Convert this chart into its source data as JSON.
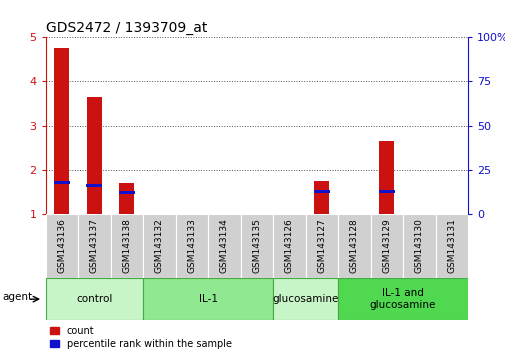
{
  "title": "GDS2472 / 1393709_at",
  "samples": [
    "GSM143136",
    "GSM143137",
    "GSM143138",
    "GSM143132",
    "GSM143133",
    "GSM143134",
    "GSM143135",
    "GSM143126",
    "GSM143127",
    "GSM143128",
    "GSM143129",
    "GSM143130",
    "GSM143131"
  ],
  "count_values": [
    4.75,
    3.65,
    1.7,
    1.0,
    1.0,
    1.0,
    1.0,
    1.0,
    1.75,
    1.0,
    2.65,
    1.0,
    1.0
  ],
  "percentile_values": [
    18,
    16,
    12,
    0,
    0,
    0,
    0,
    0,
    13,
    0,
    13,
    0,
    0
  ],
  "groups": [
    {
      "label": "control",
      "start": 0,
      "end": 3,
      "color": "#c8f5c8"
    },
    {
      "label": "IL-1",
      "start": 3,
      "end": 7,
      "color": "#90e890"
    },
    {
      "label": "glucosamine",
      "start": 7,
      "end": 9,
      "color": "#c8f5c8"
    },
    {
      "label": "IL-1 and\nglucosamine",
      "start": 9,
      "end": 13,
      "color": "#50d850"
    }
  ],
  "bar_color_red": "#cc1111",
  "bar_color_blue": "#1111cc",
  "ylim_left": [
    1,
    5
  ],
  "ylim_right": [
    0,
    100
  ],
  "yticks_left": [
    1,
    2,
    3,
    4,
    5
  ],
  "yticks_right": [
    0,
    25,
    50,
    75,
    100
  ],
  "ylabel_left_color": "#cc1111",
  "ylabel_right_color": "#1111cc",
  "grid_color": "#555555",
  "background_color": "#ffffff",
  "tick_area_color": "#d0d0d0",
  "agent_label": "agent",
  "legend_count": "count",
  "legend_percentile": "percentile rank within the sample",
  "figsize": [
    5.06,
    3.54
  ],
  "dpi": 100
}
